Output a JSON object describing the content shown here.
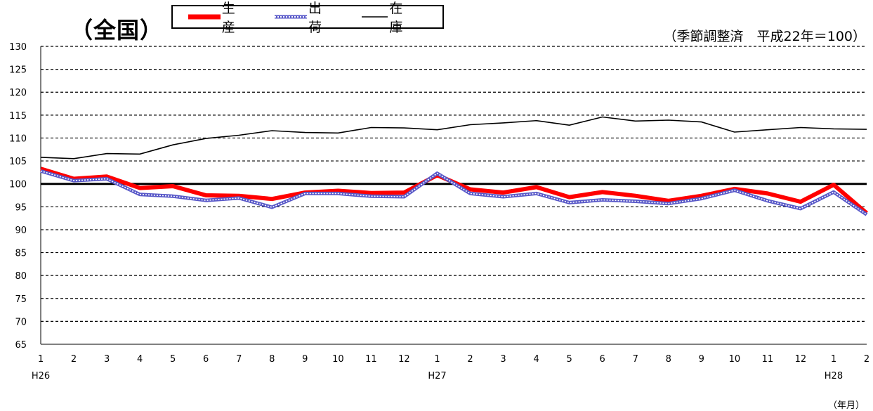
{
  "header": {
    "title": "（全国）",
    "note": "（季節調整済　平成22年＝100）",
    "unit": "（年月）"
  },
  "legend": [
    {
      "label": "生 産",
      "color": "#ff0000"
    },
    {
      "label": "出 荷",
      "color": "#5858c8"
    },
    {
      "label": "在 庫",
      "color": "#000000"
    }
  ],
  "chart_data": {
    "type": "line",
    "ylim": [
      65,
      130
    ],
    "yticks": [
      65,
      70,
      75,
      80,
      85,
      90,
      95,
      100,
      105,
      110,
      115,
      120,
      125,
      130
    ],
    "grid": true,
    "legend_position": "top-left",
    "categories": [
      "1",
      "2",
      "3",
      "4",
      "5",
      "6",
      "7",
      "8",
      "9",
      "10",
      "11",
      "12",
      "1",
      "2",
      "3",
      "4",
      "5",
      "6",
      "7",
      "8",
      "9",
      "10",
      "11",
      "12",
      "1",
      "2"
    ],
    "year_labels": [
      {
        "index": 0,
        "label": "H26"
      },
      {
        "index": 12,
        "label": "H27"
      },
      {
        "index": 24,
        "label": "H28"
      }
    ],
    "reference_line": 100,
    "series": [
      {
        "name": "生 産",
        "color": "#ff0000",
        "values": [
          103.3,
          101.1,
          101.6,
          99.1,
          99.5,
          97.5,
          97.4,
          96.7,
          98.1,
          98.5,
          98.0,
          98.1,
          101.9,
          98.8,
          98.1,
          99.3,
          97.1,
          98.2,
          97.4,
          96.3,
          97.4,
          98.9,
          97.9,
          96.1,
          99.8,
          93.6
        ]
      },
      {
        "name": "出 荷",
        "color": "#5858c8",
        "values": [
          102.8,
          100.7,
          101.1,
          97.7,
          97.3,
          96.4,
          96.9,
          94.9,
          97.9,
          97.9,
          97.3,
          97.2,
          102.3,
          97.9,
          97.2,
          97.9,
          95.9,
          96.5,
          96.2,
          95.7,
          96.8,
          98.6,
          96.3,
          94.6,
          98.2,
          93.3
        ]
      },
      {
        "name": "在 庫",
        "color": "#000000",
        "values": [
          105.8,
          105.5,
          106.6,
          106.5,
          108.5,
          109.9,
          110.6,
          111.6,
          111.2,
          111.1,
          112.3,
          112.2,
          111.8,
          112.9,
          113.3,
          113.8,
          112.8,
          114.6,
          113.7,
          113.9,
          113.5,
          111.3,
          111.8,
          112.3,
          112.0,
          111.9
        ]
      }
    ]
  }
}
